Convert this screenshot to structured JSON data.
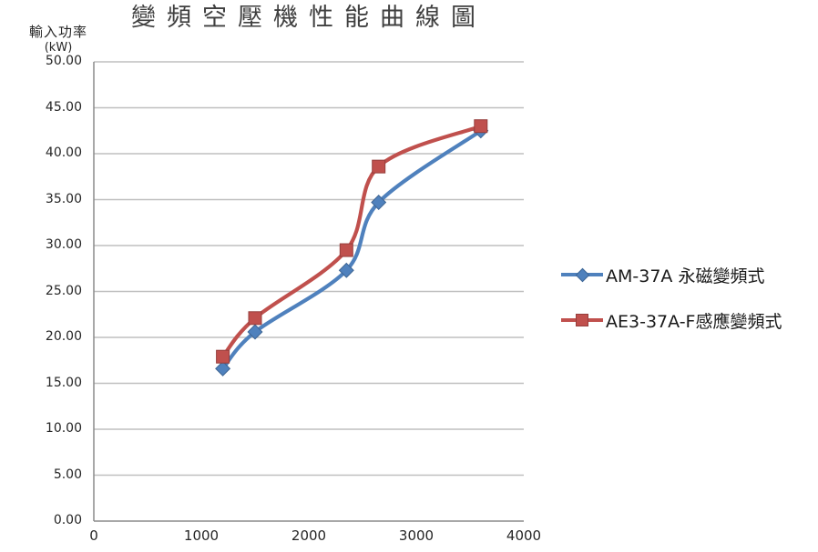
{
  "title": "變頻空壓機性能曲線圖",
  "y_axis_title": {
    "line1": "輸入功率",
    "line2": "(kW)"
  },
  "chart_data": {
    "type": "line",
    "title": "變頻空壓機性能曲線圖",
    "xlabel": "",
    "ylabel": "輸入功率 (kW)",
    "line_style": "smooth",
    "grid": "horizontal",
    "legend_position": "right",
    "xlim": [
      0,
      4000
    ],
    "ylim": [
      0,
      50
    ],
    "x_tick_step": 1000,
    "y_tick_step": 5,
    "x_tick_labels": [
      "0",
      "1000",
      "2000",
      "3000",
      "4000"
    ],
    "y_tick_labels": [
      "0.00",
      "5.00",
      "10.00",
      "15.00",
      "20.00",
      "25.00",
      "30.00",
      "35.00",
      "40.00",
      "45.00",
      "50.00"
    ],
    "x": [
      1200,
      1500,
      2350,
      2650,
      3600
    ],
    "series": [
      {
        "name": "AM-37A 永磁變頻式",
        "color": "#4F81BD",
        "marker": "diamond",
        "values": [
          16.6,
          20.6,
          27.3,
          34.7,
          42.5
        ]
      },
      {
        "name": "AE3-37A-F感應變頻式",
        "color": "#C0504D",
        "marker": "square",
        "values": [
          17.9,
          22.1,
          29.5,
          38.6,
          43.0
        ]
      }
    ]
  },
  "colors": {
    "series1": "#4F81BD",
    "series2": "#C0504D",
    "gridline": "#BFBFBF",
    "axis": "#8C8C8C",
    "title_text": "#3F3F3F",
    "tick_text": "#262626",
    "background": "#FFFFFF"
  }
}
